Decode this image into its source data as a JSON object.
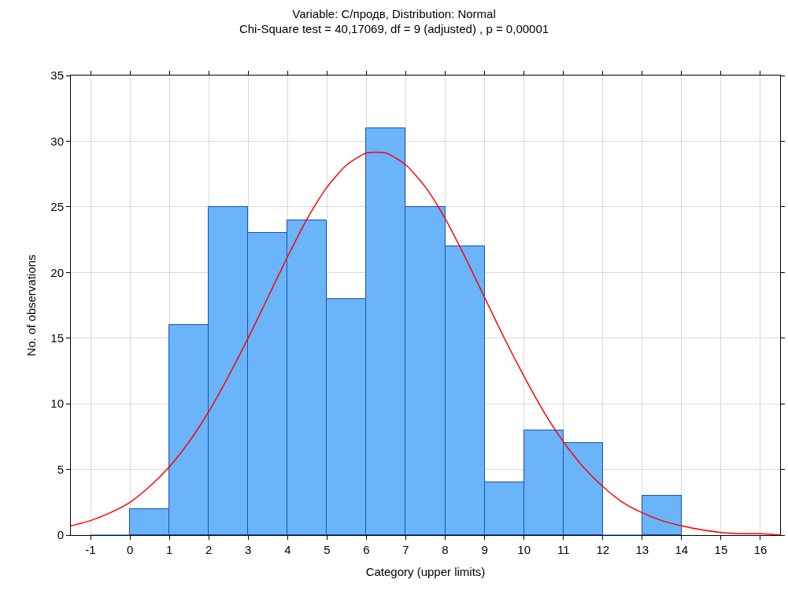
{
  "chart_data": {
    "type": "histogram",
    "title": "Variable: С/продв, Distribution: Normal",
    "subtitle": "Chi-Square test = 40,17069, df = 9 (adjusted) , p = 0,00001",
    "xlabel": "Category (upper limits)",
    "ylabel": "No. of observations",
    "bins": [
      -1,
      0,
      1,
      2,
      3,
      4,
      5,
      6,
      7,
      8,
      9,
      10,
      11,
      12,
      13,
      14
    ],
    "values": [
      0,
      2,
      16,
      25,
      23,
      24,
      18,
      31,
      25,
      22,
      4,
      8,
      7,
      0,
      3
    ],
    "color": "#6ab4fa",
    "series": [
      {
        "type": "line",
        "color": "#ff0000",
        "x": [
          -1.5,
          -1,
          -0.5,
          0,
          0.5,
          1,
          1.5,
          2,
          2.5,
          3,
          3.5,
          4,
          4.5,
          5,
          5.5,
          6,
          6.5,
          7,
          7.5,
          8,
          8.5,
          9,
          9.5,
          10,
          10.5,
          11,
          11.5,
          12,
          12.5,
          13,
          13.5,
          14,
          14.5,
          15,
          15.5,
          16,
          16.5
        ],
        "values": [
          0.7,
          1.1,
          1.7,
          2.5,
          3.7,
          5.2,
          7.1,
          9.4,
          12.1,
          15.0,
          18.1,
          21.2,
          24.1,
          26.5,
          28.2,
          29.1,
          29.1,
          28.2,
          26.5,
          24.1,
          21.2,
          18.1,
          15.0,
          12.1,
          9.4,
          7.1,
          5.2,
          3.7,
          2.5,
          1.7,
          1.1,
          0.7,
          0.4,
          0.2,
          0.1,
          0.1,
          0.0
        ]
      }
    ],
    "xlim": [
      -1.5,
      16.5
    ],
    "xticks": [
      -1,
      0,
      1,
      2,
      3,
      4,
      5,
      6,
      7,
      8,
      9,
      10,
      11,
      12,
      13,
      14,
      15,
      16
    ],
    "ylim": [
      0,
      35
    ],
    "yticks": [
      0,
      5,
      10,
      15,
      20,
      25,
      30,
      35
    ],
    "grid": true
  }
}
